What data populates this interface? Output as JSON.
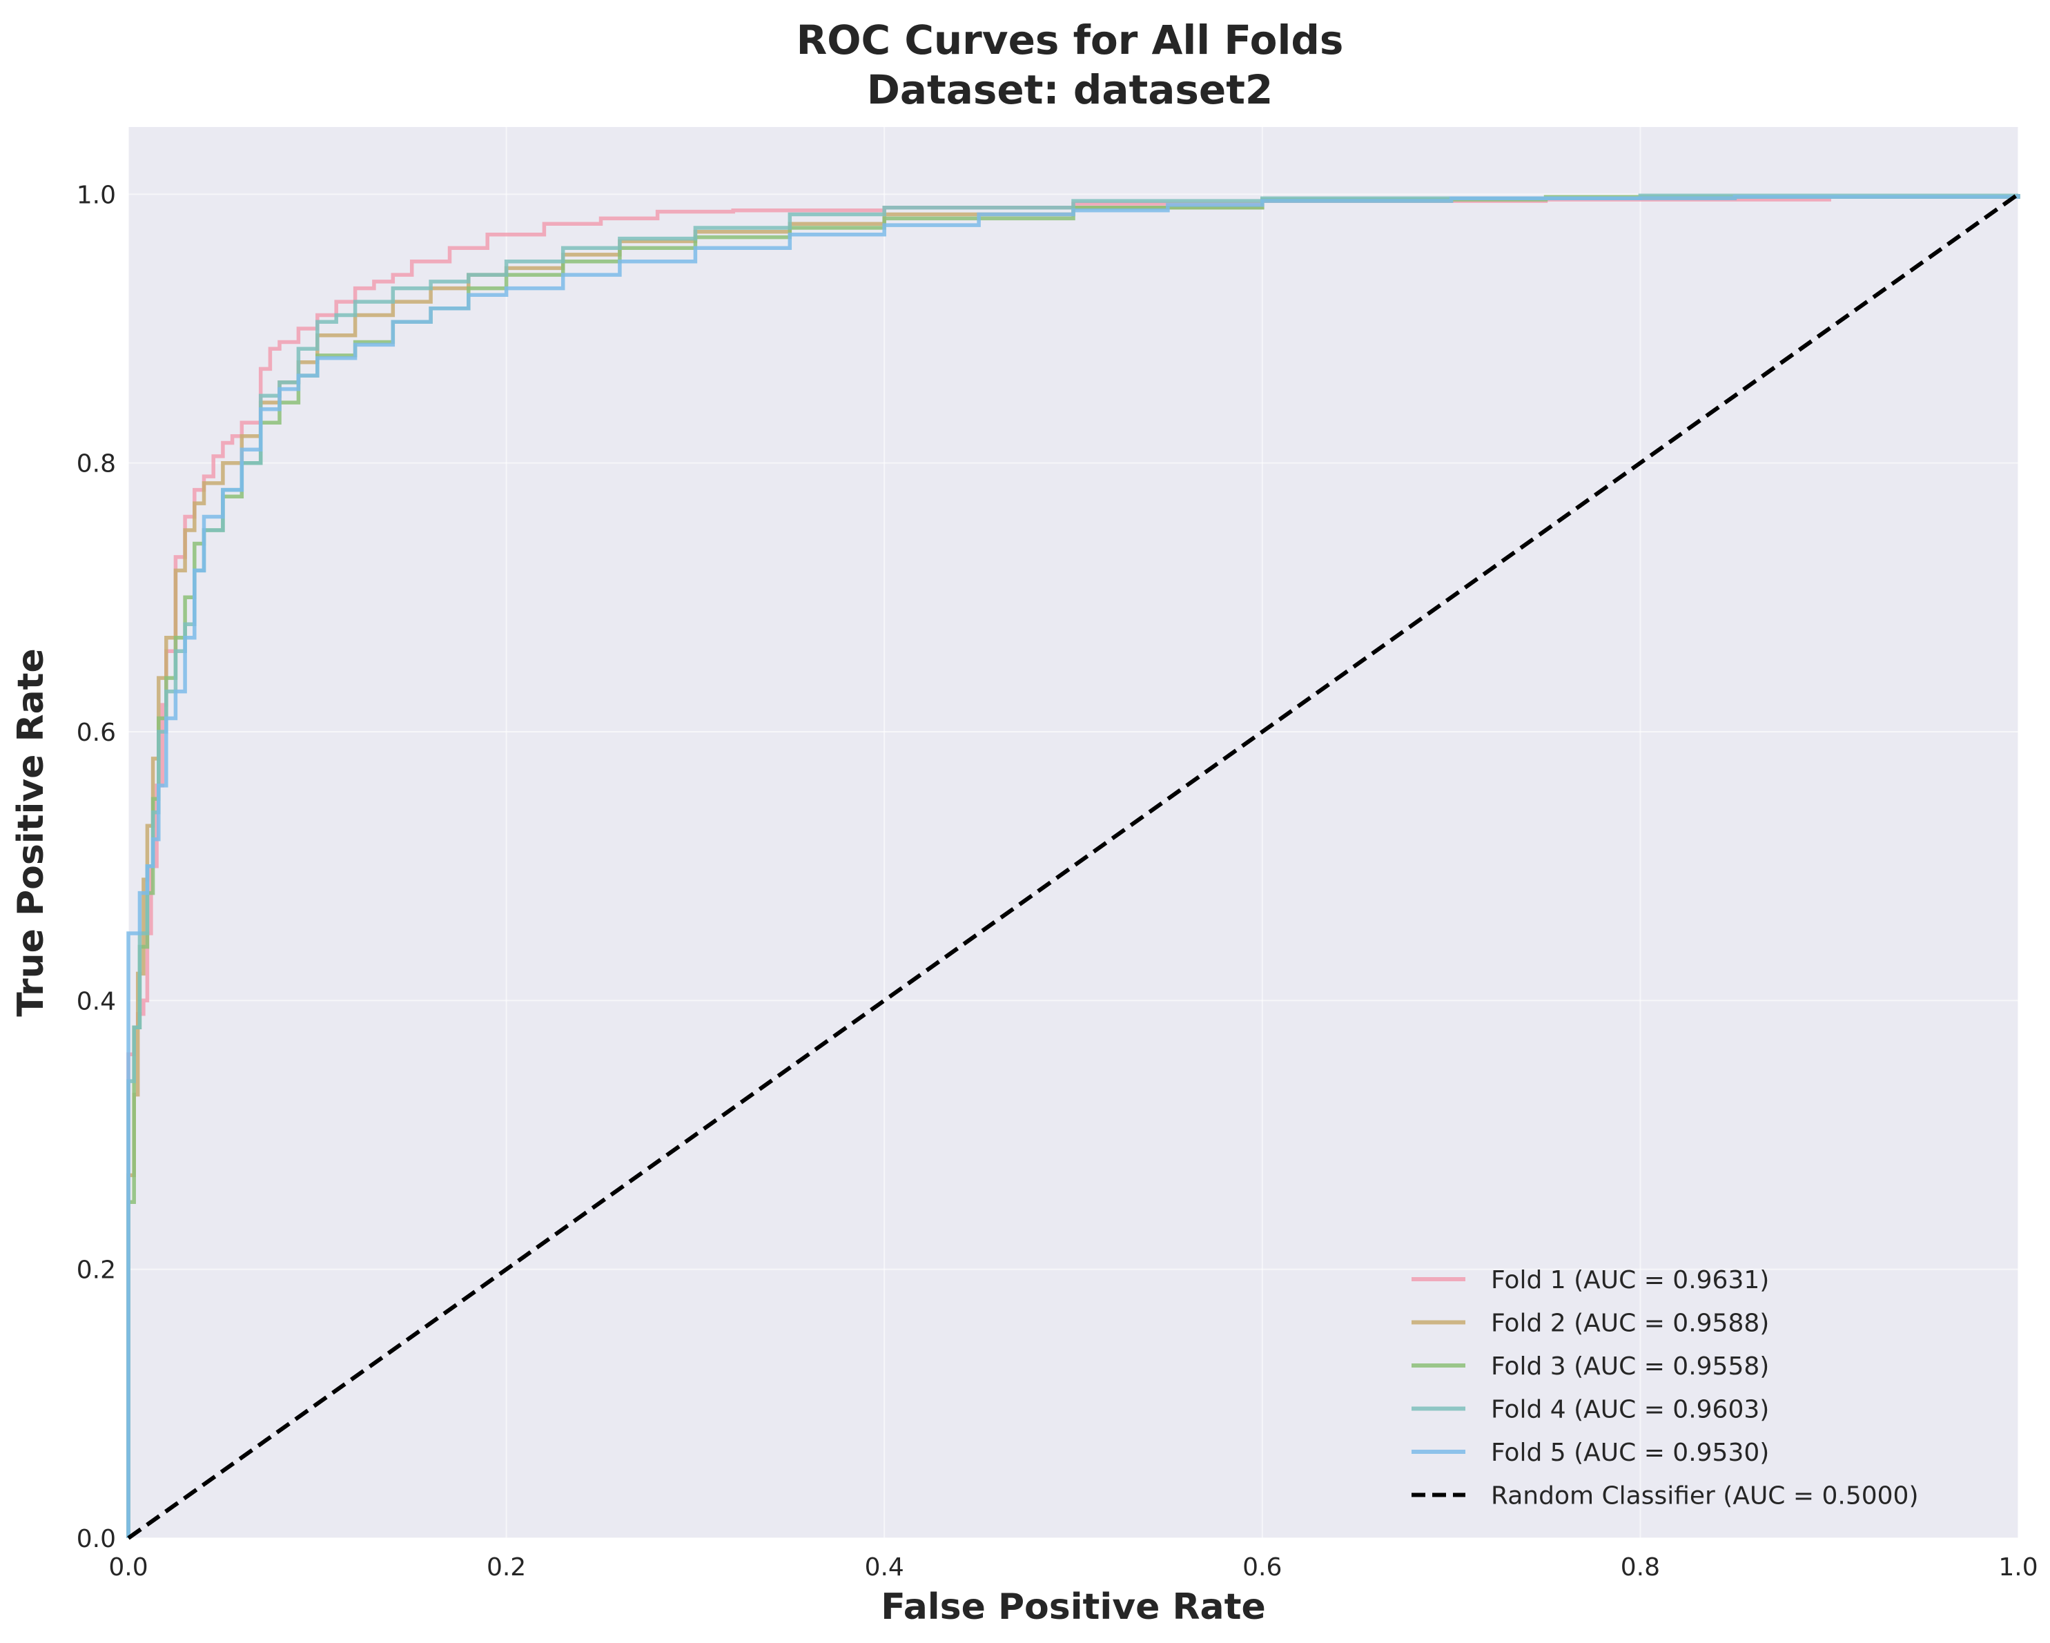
{
  "chart_data": {
    "type": "line",
    "title": "ROC Curves for All Folds",
    "subtitle": "Dataset: dataset2",
    "xlabel": "False Positive Rate",
    "ylabel": "True Positive Rate",
    "xlim": [
      0.0,
      1.0
    ],
    "ylim": [
      0.0,
      1.05
    ],
    "xticks": [
      "0.0",
      "0.2",
      "0.4",
      "0.6",
      "0.8",
      "1.0"
    ],
    "yticks": [
      "0.0",
      "0.2",
      "0.4",
      "0.6",
      "0.8",
      "1.0"
    ],
    "grid": true,
    "background": "#eaeaf2",
    "legend_position": "lower-right",
    "series": [
      {
        "name": "Fold 1 (AUC = 0.9631)",
        "color": "#f19fb1",
        "style": "solid",
        "x": [
          0,
          0,
          0.003,
          0.005,
          0.008,
          0.01,
          0.012,
          0.015,
          0.018,
          0.02,
          0.025,
          0.03,
          0.035,
          0.04,
          0.045,
          0.05,
          0.055,
          0.06,
          0.07,
          0.075,
          0.08,
          0.09,
          0.1,
          0.11,
          0.12,
          0.13,
          0.14,
          0.15,
          0.17,
          0.19,
          0.22,
          0.25,
          0.28,
          0.32,
          0.4,
          0.5,
          0.6,
          0.75,
          0.9,
          1.0
        ],
        "y": [
          0,
          0.36,
          0.38,
          0.39,
          0.4,
          0.45,
          0.5,
          0.56,
          0.62,
          0.66,
          0.73,
          0.76,
          0.78,
          0.79,
          0.805,
          0.815,
          0.82,
          0.83,
          0.87,
          0.885,
          0.89,
          0.9,
          0.91,
          0.92,
          0.93,
          0.935,
          0.94,
          0.95,
          0.96,
          0.97,
          0.978,
          0.982,
          0.987,
          0.988,
          0.99,
          0.993,
          0.995,
          0.996,
          0.998,
          1.0
        ]
      },
      {
        "name": "Fold 2 (AUC = 0.9588)",
        "color": "#c8ab72",
        "style": "solid",
        "x": [
          0,
          0,
          0.003,
          0.005,
          0.008,
          0.01,
          0.013,
          0.016,
          0.02,
          0.025,
          0.03,
          0.035,
          0.04,
          0.05,
          0.06,
          0.07,
          0.08,
          0.09,
          0.1,
          0.12,
          0.14,
          0.16,
          0.18,
          0.2,
          0.23,
          0.26,
          0.3,
          0.35,
          0.4,
          0.5,
          0.6,
          0.7,
          0.85,
          1.0
        ],
        "y": [
          0,
          0.27,
          0.33,
          0.42,
          0.49,
          0.53,
          0.58,
          0.64,
          0.67,
          0.72,
          0.75,
          0.77,
          0.785,
          0.8,
          0.82,
          0.845,
          0.86,
          0.875,
          0.895,
          0.91,
          0.92,
          0.93,
          0.94,
          0.945,
          0.955,
          0.965,
          0.972,
          0.978,
          0.985,
          0.99,
          0.995,
          0.997,
          0.998,
          1.0
        ]
      },
      {
        "name": "Fold 3 (AUC = 0.9558)",
        "color": "#8cc078",
        "style": "solid",
        "x": [
          0,
          0,
          0.003,
          0.006,
          0.01,
          0.013,
          0.016,
          0.02,
          0.025,
          0.03,
          0.035,
          0.04,
          0.05,
          0.06,
          0.07,
          0.08,
          0.09,
          0.1,
          0.12,
          0.14,
          0.16,
          0.18,
          0.2,
          0.23,
          0.26,
          0.3,
          0.35,
          0.4,
          0.5,
          0.6,
          0.75,
          1.0
        ],
        "y": [
          0,
          0.25,
          0.38,
          0.44,
          0.48,
          0.55,
          0.61,
          0.64,
          0.67,
          0.7,
          0.74,
          0.75,
          0.775,
          0.8,
          0.83,
          0.845,
          0.865,
          0.88,
          0.89,
          0.905,
          0.915,
          0.93,
          0.94,
          0.95,
          0.96,
          0.968,
          0.975,
          0.982,
          0.99,
          0.996,
          0.998,
          1.0
        ]
      },
      {
        "name": "Fold 4 (AUC = 0.9603)",
        "color": "#7ec0bc",
        "style": "solid",
        "x": [
          0,
          0,
          0.003,
          0.006,
          0.01,
          0.013,
          0.016,
          0.02,
          0.025,
          0.03,
          0.035,
          0.04,
          0.05,
          0.06,
          0.07,
          0.08,
          0.09,
          0.1,
          0.11,
          0.12,
          0.14,
          0.16,
          0.18,
          0.2,
          0.23,
          0.26,
          0.3,
          0.35,
          0.4,
          0.5,
          0.6,
          0.8,
          1.0
        ],
        "y": [
          0,
          0.34,
          0.38,
          0.45,
          0.5,
          0.54,
          0.6,
          0.63,
          0.66,
          0.68,
          0.72,
          0.75,
          0.78,
          0.8,
          0.85,
          0.86,
          0.885,
          0.905,
          0.91,
          0.92,
          0.93,
          0.935,
          0.94,
          0.95,
          0.96,
          0.967,
          0.975,
          0.985,
          0.99,
          0.995,
          0.997,
          0.999,
          1.0
        ]
      },
      {
        "name": "Fold 5 (AUC = 0.9530)",
        "color": "#7cbbe9",
        "style": "solid",
        "x": [
          0,
          0,
          0.003,
          0.006,
          0.01,
          0.013,
          0.016,
          0.02,
          0.025,
          0.03,
          0.035,
          0.04,
          0.05,
          0.06,
          0.07,
          0.08,
          0.09,
          0.1,
          0.12,
          0.14,
          0.16,
          0.18,
          0.2,
          0.23,
          0.26,
          0.3,
          0.35,
          0.4,
          0.45,
          0.5,
          0.55,
          0.6,
          0.7,
          0.85,
          1.0
        ],
        "y": [
          0,
          0.45,
          0.45,
          0.48,
          0.5,
          0.52,
          0.56,
          0.61,
          0.63,
          0.67,
          0.72,
          0.76,
          0.78,
          0.81,
          0.84,
          0.855,
          0.865,
          0.878,
          0.888,
          0.905,
          0.915,
          0.925,
          0.93,
          0.94,
          0.95,
          0.96,
          0.97,
          0.977,
          0.985,
          0.988,
          0.992,
          0.995,
          0.997,
          0.998,
          1.0
        ]
      },
      {
        "name": "Random Classifier (AUC = 0.5000)",
        "color": "#000000",
        "style": "dashed",
        "x": [
          0,
          1
        ],
        "y": [
          0,
          1
        ]
      }
    ]
  }
}
